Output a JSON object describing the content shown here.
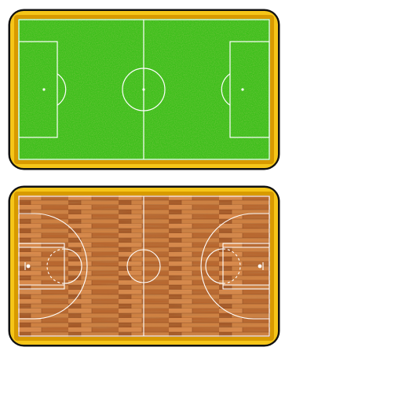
{
  "tiles": [
    {
      "kind": "soccer-field",
      "frame_color": "#f5c518",
      "frame_shade": "#d89a00",
      "outline_color": "#111111",
      "surface_color": "#3cbf1a",
      "surface_dark": "#2e9c12",
      "line_color": "#ffffff"
    },
    {
      "kind": "basketball-court",
      "frame_color": "#f5c518",
      "frame_shade": "#d89a00",
      "outline_color": "#111111",
      "surface_color": "#c9773d",
      "surface_dark": "#a65a28",
      "line_color": "#ffffff"
    }
  ]
}
